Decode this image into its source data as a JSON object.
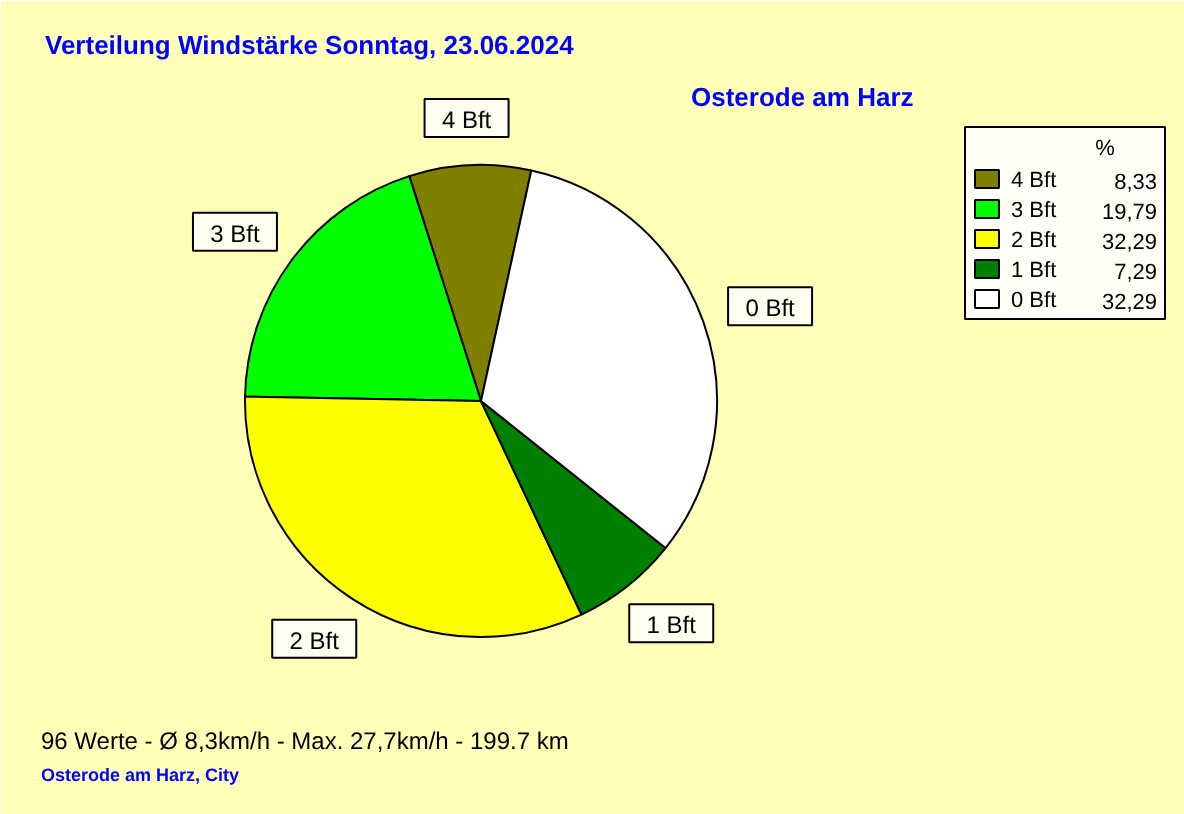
{
  "chart_data": {
    "type": "pie",
    "title": "Verteilung Windstärke  Sonntag, 23.06.2024",
    "subtitle": "Osterode am Harz",
    "categories": [
      "4 Bft",
      "3 Bft",
      "2 Bft",
      "1 Bft",
      "0 Bft"
    ],
    "values": [
      8.33,
      19.79,
      32.29,
      7.29,
      32.29
    ],
    "value_labels": [
      "8,33",
      "19,79",
      "32,29",
      "7,29",
      "32,29"
    ],
    "colors": [
      "#808000",
      "#00ff00",
      "#ffff00",
      "#008000",
      "#ffffff"
    ],
    "legend": "top right",
    "legend_title": "%",
    "annotations": [
      "96 Werte  -  Ø 8,3km/h  -  Max. 27,7km/h  -  199.7 km",
      "Osterode am Harz, City"
    ]
  }
}
